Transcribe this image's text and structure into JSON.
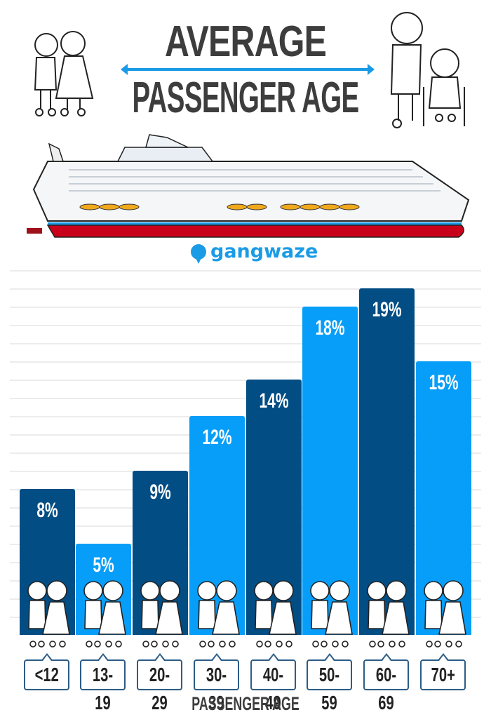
{
  "header": {
    "title_line1": "AVERAGE",
    "title_line2": "PASSENGER AGE",
    "accent_color": "#1a9be6"
  },
  "brand": {
    "name": "gangwaze",
    "icon": "ship-pin-icon"
  },
  "chart_data": {
    "type": "bar",
    "title": "Average Passenger Age",
    "xlabel": "PASSENGER AGE",
    "ylabel": "",
    "categories": [
      "<12",
      "13-19",
      "20-29",
      "30-39",
      "40-49",
      "50-59",
      "60-69",
      "70+"
    ],
    "values": [
      8,
      5,
      9,
      12,
      14,
      18,
      19,
      15
    ],
    "value_labels": [
      "8%",
      "5%",
      "9%",
      "12%",
      "14%",
      "18%",
      "19%",
      "15%"
    ],
    "unit": "%",
    "ylim": [
      0,
      20
    ],
    "grid": true,
    "legend": "none",
    "colors": [
      "#024d84",
      "#069ef8",
      "#024d84",
      "#069ef8",
      "#024d84",
      "#069ef8",
      "#024d84",
      "#069ef8"
    ]
  }
}
